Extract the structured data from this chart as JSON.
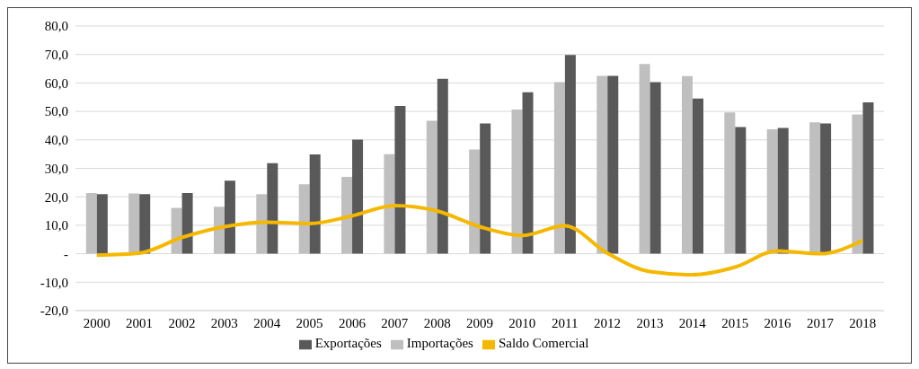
{
  "chart_data": {
    "type": "bar",
    "categories": [
      "2000",
      "2001",
      "2002",
      "2003",
      "2004",
      "2005",
      "2006",
      "2007",
      "2008",
      "2009",
      "2010",
      "2011",
      "2012",
      "2013",
      "2014",
      "2015",
      "2016",
      "2017",
      "2018"
    ],
    "series": [
      {
        "name": "Importações",
        "color": "#bfbfbf",
        "values": [
          21.3,
          21.2,
          16.1,
          16.5,
          20.9,
          24.4,
          27.0,
          35.0,
          46.7,
          36.6,
          50.7,
          60.3,
          62.5,
          66.7,
          62.4,
          49.6,
          43.7,
          46.2,
          48.9
        ]
      },
      {
        "name": "Exportações",
        "color": "#595959",
        "values": [
          20.9,
          20.9,
          21.3,
          25.7,
          31.8,
          34.9,
          40.1,
          51.9,
          61.5,
          45.8,
          56.7,
          69.8,
          62.5,
          60.3,
          54.5,
          44.5,
          44.2,
          45.8,
          53.2
        ]
      },
      {
        "name": "Saldo Comercial",
        "type": "line",
        "color": "#f5b800",
        "values": [
          -0.5,
          0.2,
          5.7,
          9.5,
          11.1,
          10.6,
          13.3,
          16.9,
          15.0,
          9.5,
          6.4,
          9.8,
          0.2,
          -6.3,
          -7.4,
          -4.7,
          1.0,
          0.0,
          4.6
        ]
      }
    ],
    "ylim": [
      -20,
      80
    ],
    "yticks": [
      {
        "value": -20,
        "label": "-20,0"
      },
      {
        "value": -10,
        "label": "-10,0"
      },
      {
        "value": 0,
        "label": "-"
      },
      {
        "value": 10,
        "label": "10,0"
      },
      {
        "value": 20,
        "label": "20,0"
      },
      {
        "value": 30,
        "label": "30,0"
      },
      {
        "value": 40,
        "label": "40,0"
      },
      {
        "value": 50,
        "label": "50,0"
      },
      {
        "value": 60,
        "label": "60,0"
      },
      {
        "value": 70,
        "label": "70,0"
      },
      {
        "value": 80,
        "label": "80,0"
      }
    ],
    "grid": "y",
    "legend": "bottom",
    "marker": "none"
  }
}
